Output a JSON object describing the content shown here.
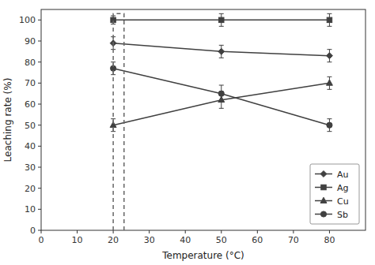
{
  "chart_data": {
    "type": "line",
    "xlabel": "Temperature (°C)",
    "ylabel": "Leaching rate (%)",
    "xlim": [
      0,
      90
    ],
    "ylim": [
      0,
      105
    ],
    "xticks": [
      0,
      10,
      20,
      30,
      40,
      50,
      60,
      70,
      80
    ],
    "yticks": [
      0,
      10,
      20,
      30,
      40,
      50,
      60,
      70,
      80,
      90,
      100
    ],
    "grid": false,
    "legend": "lower right",
    "color": "#404040",
    "series": [
      {
        "name": "Au",
        "x": [
          20,
          50,
          80
        ],
        "values": [
          89,
          85,
          83
        ],
        "errors": [
          3,
          3,
          3
        ],
        "marker": "diamond",
        "line_style": "solid"
      },
      {
        "name": "Ag",
        "x": [
          20,
          50,
          80
        ],
        "values": [
          100,
          100,
          100
        ],
        "errors": [
          2,
          3,
          3
        ],
        "marker": "square",
        "line_style": "solid"
      },
      {
        "name": "Cu",
        "x": [
          20,
          50,
          80
        ],
        "values": [
          50,
          62,
          70
        ],
        "errors": [
          3,
          4,
          3
        ],
        "marker": "triangle",
        "line_style": "solid"
      },
      {
        "name": "Sb",
        "x": [
          20,
          50,
          80
        ],
        "values": [
          77,
          65,
          50
        ],
        "errors": [
          3,
          4,
          3
        ],
        "marker": "circle",
        "line_style": "solid"
      },
      {
        "type": "line",
        "x": [
          20,
          20,
          23,
          23
        ],
        "values": [
          0,
          103,
          103,
          0
        ],
        "line_style": "dashed",
        "color": "#666666"
      }
    ]
  }
}
